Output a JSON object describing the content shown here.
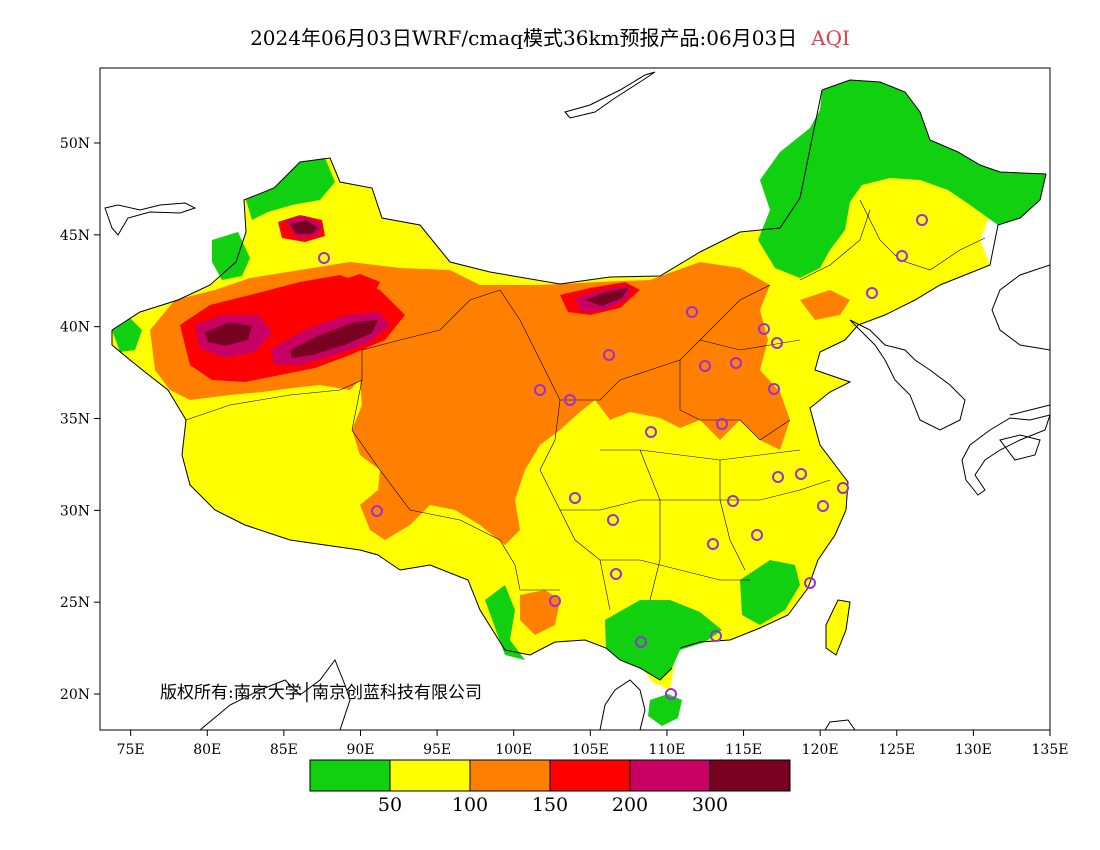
{
  "title": {
    "main": "2024年06月03日WRF/cmaq模式36km预报产品:06月03日",
    "index": "AQI"
  },
  "axes": {
    "x_ticks": [
      "75E",
      "80E",
      "85E",
      "90E",
      "95E",
      "100E",
      "105E",
      "110E",
      "115E",
      "120E",
      "125E",
      "130E",
      "135E"
    ],
    "y_ticks": [
      "50N",
      "45N",
      "40N",
      "35N",
      "30N",
      "25N",
      "20N"
    ]
  },
  "colorbar": {
    "colors": [
      "#10d010",
      "#ffff00",
      "#ff8000",
      "#ff0000",
      "#c80064",
      "#780020"
    ],
    "labels": [
      "50",
      "100",
      "150",
      "200",
      "300"
    ]
  },
  "copyright": "版权所有:南京大学│南京创蓝科技有限公司",
  "colors": {
    "good": "#10d010",
    "moderate": "#ffff00",
    "sensitive": "#ff8000",
    "unhealthy": "#ff0000",
    "very_unhealthy": "#c80064",
    "hazardous": "#780020",
    "station_marker": "#9b30d8"
  }
}
